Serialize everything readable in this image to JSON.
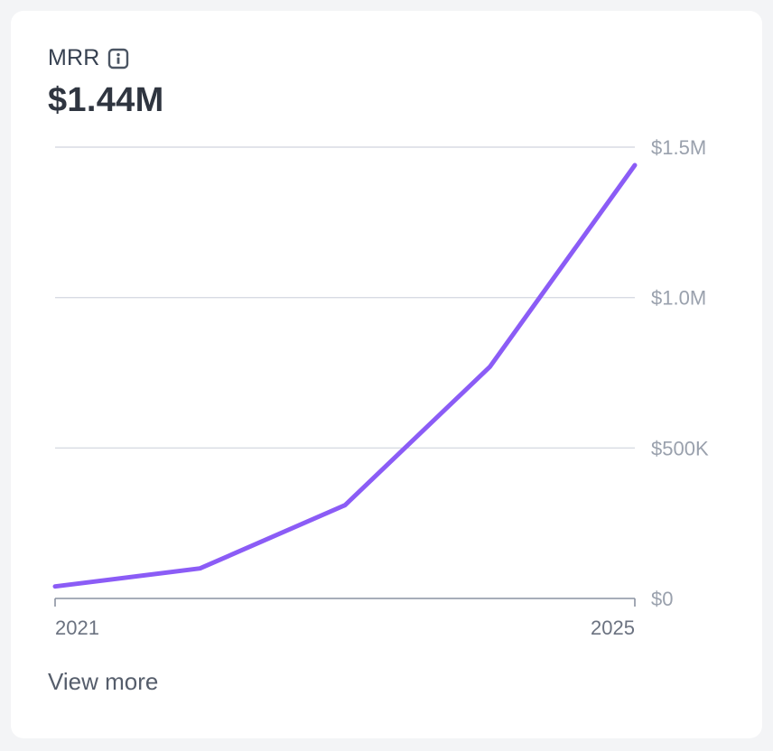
{
  "card": {
    "metric_label": "MRR",
    "metric_value": "$1.44M",
    "info_icon": "info-icon",
    "view_more_label": "View more"
  },
  "colors": {
    "line": "#8b5cf6",
    "grid": "#d8dbe3",
    "axis": "#8a93a2",
    "tick_text_y": "#9aa1ad",
    "tick_text_x": "#6b7280"
  },
  "chart_data": {
    "type": "line",
    "title": "MRR",
    "xlabel": "",
    "ylabel": "",
    "x": [
      2021,
      2022,
      2023,
      2024,
      2025
    ],
    "series": [
      {
        "name": "MRR",
        "values": [
          40000,
          100000,
          310000,
          770000,
          1440000
        ]
      }
    ],
    "ylim": [
      0,
      1500000
    ],
    "xlim": [
      2021,
      2025
    ],
    "y_ticks": [
      {
        "value": 0,
        "label": "$0"
      },
      {
        "value": 500000,
        "label": "$500K"
      },
      {
        "value": 1000000,
        "label": "$1.0M"
      },
      {
        "value": 1500000,
        "label": "$1.5M"
      }
    ],
    "x_ticks": [
      {
        "value": 2021,
        "label": "2021"
      },
      {
        "value": 2025,
        "label": "2025"
      }
    ],
    "grid": true,
    "legend": "none"
  }
}
